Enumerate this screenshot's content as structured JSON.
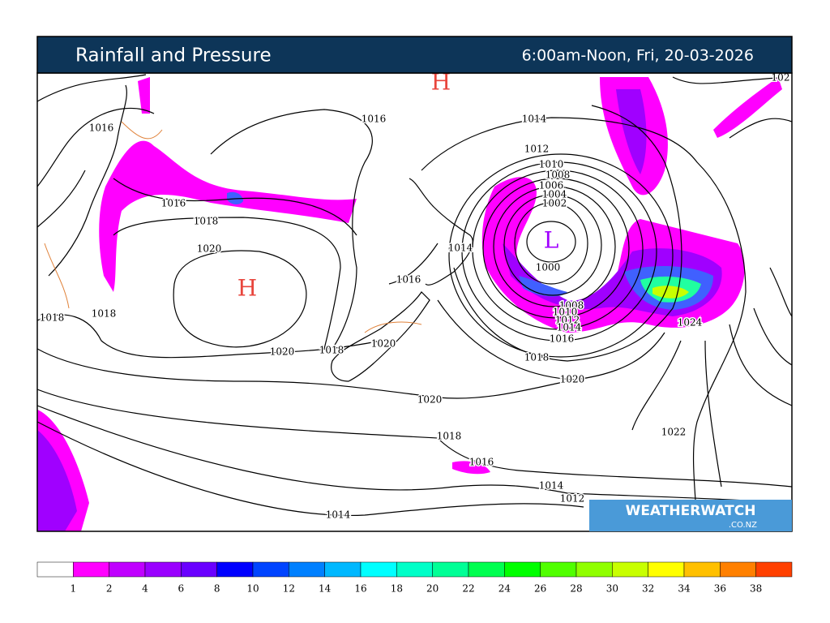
{
  "header": {
    "title": "Rainfall and Pressure",
    "period": "6:00am-Noon, Fri, 20-03-2026"
  },
  "systems": [
    "H",
    "H",
    "L"
  ],
  "isobar_labels": [
    "1016",
    "1016",
    "1014",
    "1012",
    "1010",
    "1008",
    "1006",
    "1004",
    "1002",
    "1016",
    "1018",
    "1020",
    "1014",
    "1000",
    "1016",
    "1018",
    "1018",
    "1008",
    "1010",
    "1012",
    "1014",
    "1016",
    "1024",
    "1020",
    "1018",
    "1020",
    "1018",
    "1020",
    "1020",
    "1022",
    "1018",
    "1016",
    "1014",
    "1012",
    "1014",
    "102"
  ],
  "logo": {
    "name": "WEATHERWATCH",
    "domain": ".CO.NZ"
  },
  "legend": {
    "labels": [
      1,
      2,
      4,
      6,
      8,
      10,
      12,
      14,
      16,
      18,
      20,
      22,
      24,
      26,
      28,
      30,
      32,
      34,
      36,
      38
    ],
    "colors": [
      "#ffffff",
      "#ff00ff",
      "#c000ff",
      "#9a00ff",
      "#6a00ff",
      "#0000ff",
      "#0044ff",
      "#0080ff",
      "#00b8ff",
      "#00ffff",
      "#00ffc8",
      "#00ff96",
      "#00ff50",
      "#00ff00",
      "#50ff00",
      "#90ff00",
      "#c8ff00",
      "#ffff00",
      "#ffc000",
      "#ff8000",
      "#ff4000"
    ]
  }
}
